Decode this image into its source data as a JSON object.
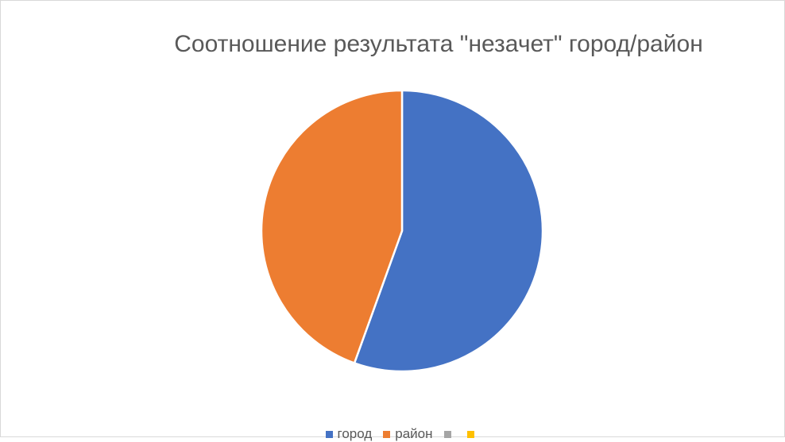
{
  "chart_data": {
    "type": "pie",
    "title": "Соотношение результата \"незачет\" город/район",
    "categories": [
      "город",
      "район",
      "",
      ""
    ],
    "values": [
      55.5,
      44.5,
      0,
      0
    ],
    "colors": [
      "#4472C4",
      "#ED7D31",
      "#A5A5A5",
      "#FFC000"
    ],
    "legend_position": "bottom"
  }
}
